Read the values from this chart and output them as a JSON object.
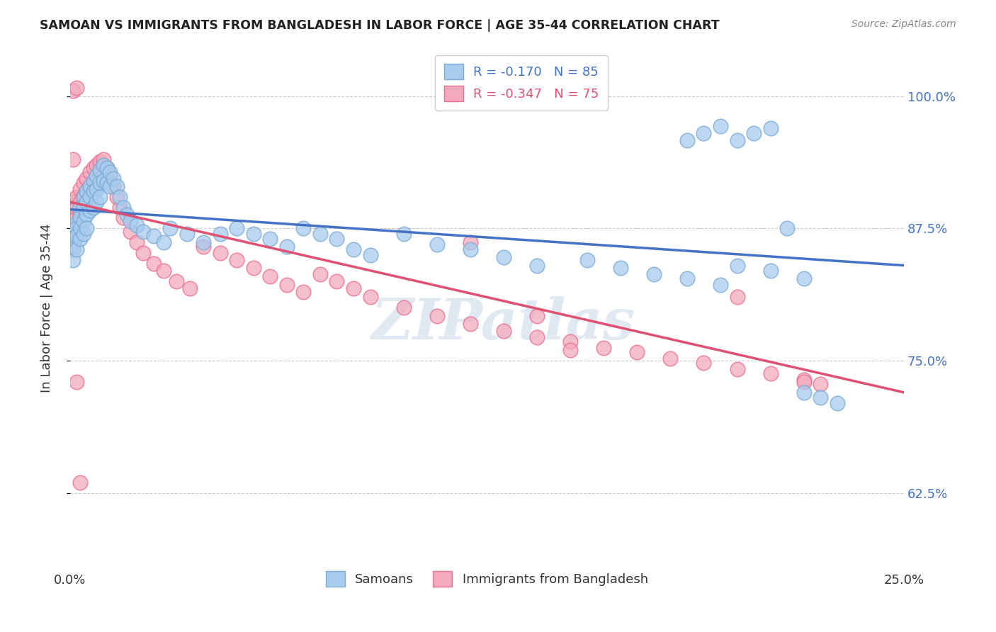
{
  "title": "SAMOAN VS IMMIGRANTS FROM BANGLADESH IN LABOR FORCE | AGE 35-44 CORRELATION CHART",
  "source": "Source: ZipAtlas.com",
  "ylabel": "In Labor Force | Age 35-44",
  "ytick_labels": [
    "62.5%",
    "75.0%",
    "87.5%",
    "100.0%"
  ],
  "ytick_values": [
    0.625,
    0.75,
    0.875,
    1.0
  ],
  "xlim": [
    0.0,
    0.25
  ],
  "ylim": [
    0.555,
    1.045
  ],
  "blue_R": -0.17,
  "blue_N": 85,
  "pink_R": -0.347,
  "pink_N": 75,
  "blue_color": "#A8CCEE",
  "pink_color": "#F4AABC",
  "blue_edge_color": "#7AAAD4",
  "pink_edge_color": "#E87090",
  "blue_line_color": "#4472C4",
  "pink_line_color": "#E05070",
  "background_color": "#FFFFFF",
  "watermark": "ZIPatlas",
  "trend_blue_x0": 0.0,
  "trend_blue_y0": 0.893,
  "trend_blue_x1": 0.25,
  "trend_blue_y1": 0.84,
  "trend_pink_x0": 0.0,
  "trend_pink_y0": 0.9,
  "trend_pink_x1": 0.25,
  "trend_pink_y1": 0.72,
  "blue_x": [
    0.001,
    0.001,
    0.001,
    0.001,
    0.001,
    0.002,
    0.002,
    0.002,
    0.002,
    0.003,
    0.003,
    0.003,
    0.003,
    0.004,
    0.004,
    0.004,
    0.004,
    0.005,
    0.005,
    0.005,
    0.005,
    0.006,
    0.006,
    0.006,
    0.007,
    0.007,
    0.007,
    0.008,
    0.008,
    0.008,
    0.009,
    0.009,
    0.009,
    0.01,
    0.01,
    0.011,
    0.011,
    0.012,
    0.012,
    0.013,
    0.014,
    0.015,
    0.016,
    0.017,
    0.018,
    0.02,
    0.022,
    0.025,
    0.028,
    0.03,
    0.035,
    0.04,
    0.045,
    0.05,
    0.055,
    0.06,
    0.065,
    0.07,
    0.075,
    0.08,
    0.085,
    0.09,
    0.1,
    0.11,
    0.12,
    0.13,
    0.14,
    0.155,
    0.165,
    0.175,
    0.185,
    0.195,
    0.2,
    0.21,
    0.22,
    0.185,
    0.19,
    0.195,
    0.2,
    0.205,
    0.21,
    0.215,
    0.22,
    0.225,
    0.23
  ],
  "blue_y": [
    0.875,
    0.87,
    0.86,
    0.855,
    0.845,
    0.88,
    0.875,
    0.868,
    0.855,
    0.895,
    0.885,
    0.875,
    0.865,
    0.905,
    0.895,
    0.882,
    0.87,
    0.91,
    0.9,
    0.888,
    0.875,
    0.915,
    0.905,
    0.892,
    0.92,
    0.91,
    0.895,
    0.925,
    0.912,
    0.9,
    0.93,
    0.918,
    0.905,
    0.935,
    0.92,
    0.932,
    0.918,
    0.928,
    0.915,
    0.922,
    0.915,
    0.905,
    0.895,
    0.888,
    0.882,
    0.878,
    0.872,
    0.868,
    0.862,
    0.875,
    0.87,
    0.862,
    0.87,
    0.875,
    0.87,
    0.865,
    0.858,
    0.875,
    0.87,
    0.865,
    0.855,
    0.85,
    0.87,
    0.86,
    0.855,
    0.848,
    0.84,
    0.845,
    0.838,
    0.832,
    0.828,
    0.822,
    0.84,
    0.835,
    0.828,
    0.958,
    0.965,
    0.972,
    0.958,
    0.965,
    0.97,
    0.875,
    0.72,
    0.715,
    0.71
  ],
  "pink_x": [
    0.001,
    0.001,
    0.001,
    0.001,
    0.001,
    0.002,
    0.002,
    0.002,
    0.002,
    0.003,
    0.003,
    0.003,
    0.004,
    0.004,
    0.004,
    0.005,
    0.005,
    0.005,
    0.006,
    0.006,
    0.007,
    0.007,
    0.008,
    0.008,
    0.009,
    0.009,
    0.01,
    0.011,
    0.012,
    0.013,
    0.014,
    0.015,
    0.016,
    0.018,
    0.02,
    0.022,
    0.025,
    0.028,
    0.032,
    0.036,
    0.04,
    0.045,
    0.05,
    0.055,
    0.06,
    0.065,
    0.07,
    0.075,
    0.08,
    0.085,
    0.09,
    0.1,
    0.11,
    0.12,
    0.13,
    0.14,
    0.15,
    0.16,
    0.17,
    0.18,
    0.19,
    0.2,
    0.21,
    0.22,
    0.225,
    0.001,
    0.001,
    0.002,
    0.002,
    0.003,
    0.12,
    0.14,
    0.15,
    0.2,
    0.22
  ],
  "pink_y": [
    0.9,
    0.892,
    0.882,
    0.872,
    0.862,
    0.905,
    0.895,
    0.885,
    0.872,
    0.912,
    0.9,
    0.888,
    0.918,
    0.906,
    0.895,
    0.922,
    0.91,
    0.898,
    0.928,
    0.915,
    0.932,
    0.918,
    0.935,
    0.92,
    0.938,
    0.922,
    0.94,
    0.932,
    0.925,
    0.915,
    0.905,
    0.895,
    0.885,
    0.872,
    0.862,
    0.852,
    0.842,
    0.835,
    0.825,
    0.818,
    0.858,
    0.852,
    0.845,
    0.838,
    0.83,
    0.822,
    0.815,
    0.832,
    0.825,
    0.818,
    0.81,
    0.8,
    0.792,
    0.785,
    0.778,
    0.772,
    0.768,
    0.762,
    0.758,
    0.752,
    0.748,
    0.742,
    0.738,
    0.732,
    0.728,
    0.94,
    1.005,
    1.008,
    0.73,
    0.635,
    0.862,
    0.792,
    0.76,
    0.81,
    0.73
  ]
}
